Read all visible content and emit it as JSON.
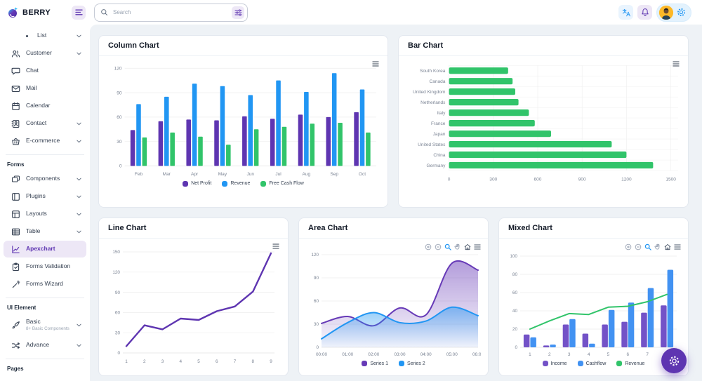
{
  "theme": {
    "primary_purple": "#5e35b1",
    "secondary_blue": "#2196f3",
    "success_green": "#31c46a",
    "content_background": "#eef2f6",
    "active_item_background": "#ede7f6"
  },
  "header": {
    "brand": "BERRY",
    "search": {
      "placeholder": "Search"
    },
    "icons": [
      "hamburger-menu-icon",
      "search-icon",
      "tune-filter-icon",
      "language-translate-icon",
      "notification-bell-icon",
      "avatar",
      "settings-gear-icon"
    ]
  },
  "sidebar": {
    "groups": [
      {
        "caption": null,
        "items": [
          {
            "key": "list",
            "label": "List",
            "icon": "bullet",
            "chevron": true,
            "indent": true
          },
          {
            "key": "customer",
            "label": "Customer",
            "icon": "users",
            "chevron": true
          },
          {
            "key": "chat",
            "label": "Chat",
            "icon": "chat",
            "chevron": false
          },
          {
            "key": "mail",
            "label": "Mail",
            "icon": "mail",
            "chevron": false
          },
          {
            "key": "calendar",
            "label": "Calendar",
            "icon": "calendar",
            "chevron": false
          },
          {
            "key": "contact",
            "label": "Contact",
            "icon": "contact",
            "chevron": true
          },
          {
            "key": "e-commerce",
            "label": "E-commerce",
            "icon": "basket",
            "chevron": true
          }
        ]
      },
      {
        "caption": "Forms",
        "items": [
          {
            "key": "components",
            "label": "Components",
            "icon": "components",
            "chevron": true
          },
          {
            "key": "plugins",
            "label": "Plugins",
            "icon": "plugins",
            "chevron": true
          },
          {
            "key": "layouts",
            "label": "Layouts",
            "icon": "layouts",
            "chevron": true
          },
          {
            "key": "table",
            "label": "Table",
            "icon": "table",
            "chevron": true
          },
          {
            "key": "apexchart",
            "label": "Apexchart",
            "icon": "apexchart",
            "chevron": false,
            "active": true
          },
          {
            "key": "forms-validation",
            "label": "Forms Validation",
            "icon": "validation",
            "chevron": false
          },
          {
            "key": "forms-wizard",
            "label": "Forms Wizard",
            "icon": "wizard",
            "chevron": false
          }
        ]
      },
      {
        "caption": "UI Element",
        "items": [
          {
            "key": "basic",
            "label": "Basic",
            "sub": "8+ Basic Components",
            "icon": "brush",
            "chevron": true
          },
          {
            "key": "advance",
            "label": "Advance",
            "icon": "advance",
            "chevron": true
          }
        ]
      },
      {
        "caption": "Pages",
        "items": []
      }
    ]
  },
  "chart_data": [
    {
      "id": "column",
      "type": "bar",
      "title": "Column Chart",
      "categories": [
        "Feb",
        "Mar",
        "Apr",
        "May",
        "Jun",
        "Jul",
        "Aug",
        "Sep",
        "Oct"
      ],
      "series": [
        {
          "name": "Net Profit",
          "color": "#5e35b1",
          "values": [
            44,
            55,
            57,
            56,
            61,
            58,
            63,
            60,
            66
          ]
        },
        {
          "name": "Revenue",
          "color": "#2196f3",
          "values": [
            76,
            85,
            101,
            98,
            87,
            105,
            91,
            114,
            94
          ]
        },
        {
          "name": "Free Cash Flow",
          "color": "#31c46a",
          "values": [
            35,
            41,
            36,
            26,
            45,
            48,
            52,
            53,
            41
          ]
        }
      ],
      "ylim": [
        0,
        120
      ],
      "yticks": [
        0,
        30,
        60,
        90,
        120
      ],
      "grid": true,
      "legend_position": "bottom",
      "toolbar_icons": [
        "menu"
      ]
    },
    {
      "id": "bar",
      "type": "bar-horizontal",
      "title": "Bar Chart",
      "categories": [
        "South Korea",
        "Canada",
        "United Kingdom",
        "Netherlands",
        "Italy",
        "France",
        "Japan",
        "United States",
        "China",
        "Germany"
      ],
      "values": [
        400,
        430,
        448,
        470,
        540,
        580,
        690,
        1100,
        1200,
        1380
      ],
      "color": "#31c46a",
      "xlim": [
        0,
        1500
      ],
      "xticks": [
        0,
        300,
        600,
        900,
        1200,
        1500
      ],
      "grid": true,
      "toolbar_icons": [
        "menu"
      ]
    },
    {
      "id": "line",
      "type": "line",
      "title": "Line Chart",
      "x": [
        1,
        2,
        3,
        4,
        5,
        6,
        7,
        8,
        9
      ],
      "values": [
        10,
        41,
        35,
        51,
        49,
        62,
        69,
        91,
        148
      ],
      "color": "#5e35b1",
      "ylim": [
        0,
        150
      ],
      "yticks": [
        0,
        30,
        60,
        90,
        120,
        150
      ],
      "grid": true,
      "toolbar_icons": [
        "menu"
      ]
    },
    {
      "id": "area",
      "type": "area",
      "title": "Area Chart",
      "categories": [
        "00:00",
        "01:00",
        "02:00",
        "03:00",
        "04:00",
        "05:00",
        "06:00"
      ],
      "series": [
        {
          "name": "Series 1",
          "color": "#673ab7",
          "values": [
            31,
            40,
            28,
            51,
            42,
            109,
            100
          ]
        },
        {
          "name": "Series 2",
          "color": "#2196f3",
          "values": [
            11,
            32,
            45,
            32,
            34,
            52,
            41
          ]
        }
      ],
      "ylim": [
        0,
        120
      ],
      "yticks": [
        0,
        30,
        60,
        90,
        120
      ],
      "grid": true,
      "legend_position": "bottom",
      "toolbar_icons": [
        "zoom-in",
        "zoom-out",
        "selection-zoom",
        "panning",
        "reset-zoom-home",
        "menu"
      ]
    },
    {
      "id": "mixed",
      "type": "mixed",
      "title": "Mixed Chart",
      "categories": [
        1,
        2,
        3,
        4,
        5,
        6,
        7,
        8
      ],
      "series": [
        {
          "name": "Income",
          "type": "bar",
          "color": "#7352c7",
          "values": [
            14,
            2,
            25,
            15,
            25,
            28,
            38,
            46
          ]
        },
        {
          "name": "Cashflow",
          "type": "bar",
          "color": "#4292f2",
          "values": [
            11,
            3,
            31,
            4,
            41,
            49,
            65,
            85
          ]
        },
        {
          "name": "Revenue",
          "type": "line",
          "color": "#31c46a",
          "values": [
            20,
            29,
            37,
            36,
            44,
            45,
            50,
            58
          ]
        }
      ],
      "ylim": [
        0,
        100
      ],
      "yticks": [
        0,
        20,
        40,
        60,
        80,
        100
      ],
      "grid": true,
      "legend_position": "bottom",
      "toolbar_icons": [
        "zoom-in",
        "zoom-out",
        "selection-zoom",
        "panning",
        "reset-zoom-home",
        "menu"
      ]
    }
  ],
  "fab": {
    "icon": "settings-gear"
  }
}
